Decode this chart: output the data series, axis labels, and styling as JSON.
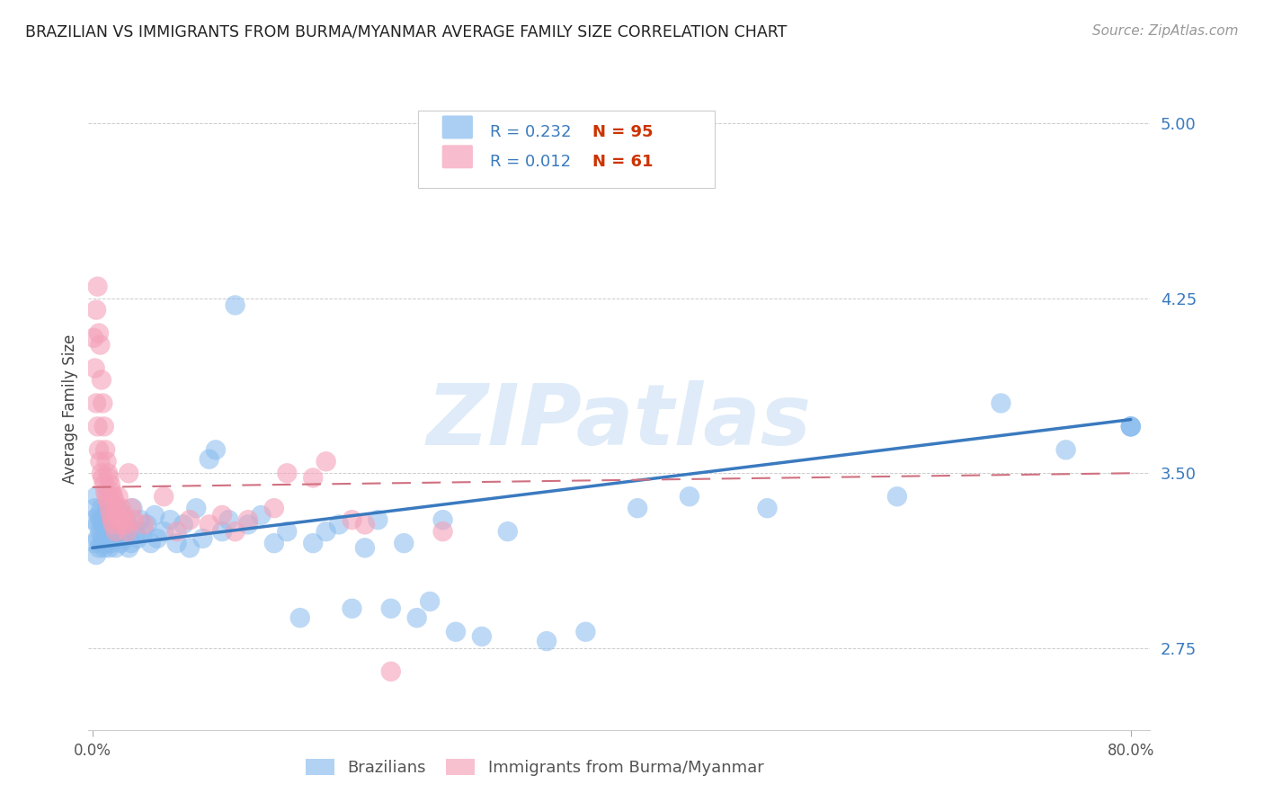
{
  "title": "BRAZILIAN VS IMMIGRANTS FROM BURMA/MYANMAR AVERAGE FAMILY SIZE CORRELATION CHART",
  "source": "Source: ZipAtlas.com",
  "ylabel": "Average Family Size",
  "yticks": [
    2.75,
    3.5,
    4.25,
    5.0
  ],
  "ylim": [
    2.4,
    5.15
  ],
  "xlim": [
    -0.003,
    0.815
  ],
  "xticks": [
    0.0,
    0.8
  ],
  "xticklabels": [
    "0.0%",
    "80.0%"
  ],
  "legend_labels_bottom": [
    "Brazilians",
    "Immigrants from Burma/Myanmar"
  ],
  "color_blue": "#88bbee",
  "color_pink": "#f4a0b8",
  "watermark": "ZIPatlas",
  "blue_trend_x": [
    0.0,
    0.8
  ],
  "blue_trend_y": [
    3.18,
    3.73
  ],
  "pink_trend_x": [
    0.0,
    0.8
  ],
  "pink_trend_y": [
    3.44,
    3.5
  ],
  "blue_r": "0.232",
  "blue_n": "95",
  "pink_r": "0.012",
  "pink_n": "61",
  "blue_points_x": [
    0.001,
    0.002,
    0.002,
    0.003,
    0.003,
    0.004,
    0.004,
    0.005,
    0.005,
    0.006,
    0.006,
    0.007,
    0.007,
    0.008,
    0.008,
    0.009,
    0.009,
    0.01,
    0.01,
    0.011,
    0.011,
    0.012,
    0.012,
    0.013,
    0.013,
    0.014,
    0.015,
    0.015,
    0.016,
    0.016,
    0.017,
    0.018,
    0.018,
    0.019,
    0.02,
    0.021,
    0.022,
    0.023,
    0.024,
    0.025,
    0.026,
    0.027,
    0.028,
    0.03,
    0.031,
    0.033,
    0.035,
    0.037,
    0.04,
    0.042,
    0.045,
    0.048,
    0.05,
    0.055,
    0.06,
    0.065,
    0.07,
    0.075,
    0.08,
    0.085,
    0.09,
    0.095,
    0.1,
    0.105,
    0.11,
    0.12,
    0.13,
    0.14,
    0.15,
    0.16,
    0.17,
    0.18,
    0.19,
    0.2,
    0.21,
    0.22,
    0.23,
    0.24,
    0.25,
    0.26,
    0.27,
    0.28,
    0.3,
    0.32,
    0.35,
    0.38,
    0.42,
    0.46,
    0.52,
    0.62,
    0.7,
    0.75,
    0.8,
    0.8,
    0.8
  ],
  "blue_points_y": [
    3.3,
    3.2,
    3.35,
    3.15,
    3.4,
    3.22,
    3.28,
    3.18,
    3.32,
    3.25,
    3.3,
    3.2,
    3.35,
    3.28,
    3.22,
    3.3,
    3.18,
    3.25,
    3.32,
    3.2,
    3.28,
    3.35,
    3.22,
    3.3,
    3.18,
    3.25,
    3.28,
    3.2,
    3.32,
    3.22,
    3.3,
    3.25,
    3.18,
    3.35,
    3.3,
    3.25,
    3.2,
    3.28,
    3.32,
    3.22,
    3.3,
    3.28,
    3.18,
    3.2,
    3.35,
    3.25,
    3.22,
    3.3,
    3.25,
    3.28,
    3.2,
    3.32,
    3.22,
    3.25,
    3.3,
    3.2,
    3.28,
    3.18,
    3.35,
    3.22,
    3.56,
    3.6,
    3.25,
    3.3,
    4.22,
    3.28,
    3.32,
    3.2,
    3.25,
    2.88,
    3.2,
    3.25,
    3.28,
    2.92,
    3.18,
    3.3,
    2.92,
    3.2,
    2.88,
    2.95,
    3.3,
    2.82,
    2.8,
    3.25,
    2.78,
    2.82,
    3.35,
    3.4,
    3.35,
    3.4,
    3.8,
    3.6,
    3.7,
    3.7,
    3.7
  ],
  "pink_points_x": [
    0.001,
    0.002,
    0.003,
    0.003,
    0.004,
    0.004,
    0.005,
    0.005,
    0.006,
    0.006,
    0.007,
    0.007,
    0.008,
    0.008,
    0.009,
    0.009,
    0.01,
    0.01,
    0.011,
    0.011,
    0.012,
    0.012,
    0.013,
    0.013,
    0.014,
    0.014,
    0.015,
    0.015,
    0.016,
    0.016,
    0.017,
    0.018,
    0.018,
    0.019,
    0.02,
    0.021,
    0.022,
    0.023,
    0.024,
    0.025,
    0.026,
    0.027,
    0.028,
    0.03,
    0.032,
    0.04,
    0.055,
    0.065,
    0.075,
    0.09,
    0.1,
    0.11,
    0.12,
    0.14,
    0.15,
    0.17,
    0.18,
    0.2,
    0.21,
    0.23,
    0.27
  ],
  "pink_points_y": [
    4.08,
    3.95,
    4.2,
    3.8,
    4.3,
    3.7,
    4.1,
    3.6,
    4.05,
    3.55,
    3.9,
    3.5,
    3.8,
    3.48,
    3.7,
    3.45,
    3.6,
    3.42,
    3.55,
    3.4,
    3.5,
    3.38,
    3.48,
    3.35,
    3.45,
    3.32,
    3.42,
    3.3,
    3.4,
    3.28,
    3.38,
    3.35,
    3.25,
    3.32,
    3.4,
    3.3,
    3.35,
    3.28,
    3.32,
    3.3,
    3.28,
    3.25,
    3.5,
    3.35,
    3.3,
    3.28,
    3.4,
    3.25,
    3.3,
    3.28,
    3.32,
    3.25,
    3.3,
    3.35,
    3.5,
    3.48,
    3.55,
    3.3,
    3.28,
    2.65,
    3.25
  ]
}
